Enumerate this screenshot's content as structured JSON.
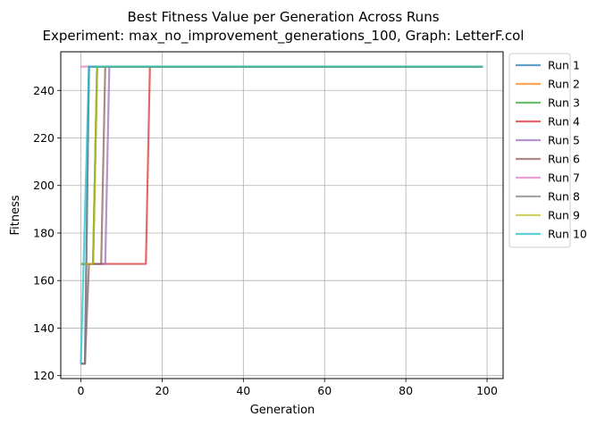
{
  "chart_data": {
    "type": "line",
    "title": "Best Fitness Value per Generation Across Runs",
    "subtitle": "Experiment: max_no_improvement_generations_100, Graph: LetterF.col",
    "xlabel": "Generation",
    "ylabel": "Fitness",
    "xlim": [
      -4.95,
      103.95
    ],
    "ylim": [
      118.75,
      256.25
    ],
    "xticks": [
      0,
      20,
      40,
      60,
      80,
      100
    ],
    "yticks": [
      120,
      140,
      160,
      180,
      200,
      220,
      240
    ],
    "grid": true,
    "legend_position": "outside-right",
    "series": [
      {
        "name": "Run 1",
        "color": "#1f77b4",
        "points": [
          [
            0,
            125
          ],
          [
            1,
            125
          ],
          [
            2,
            250
          ],
          [
            99,
            250
          ]
        ]
      },
      {
        "name": "Run 2",
        "color": "#ff7f0e",
        "points": [
          [
            0,
            167
          ],
          [
            3,
            167
          ],
          [
            4,
            250
          ],
          [
            99,
            250
          ]
        ]
      },
      {
        "name": "Run 3",
        "color": "#2ca02c",
        "points": [
          [
            0,
            167
          ],
          [
            3,
            167
          ],
          [
            4,
            250
          ],
          [
            99,
            250
          ]
        ]
      },
      {
        "name": "Run 4",
        "color": "#d62728",
        "points": [
          [
            0,
            167
          ],
          [
            16,
            167
          ],
          [
            17,
            250
          ],
          [
            99,
            250
          ]
        ]
      },
      {
        "name": "Run 5",
        "color": "#9467bd",
        "points": [
          [
            0,
            167
          ],
          [
            6,
            167
          ],
          [
            7,
            250
          ],
          [
            99,
            250
          ]
        ]
      },
      {
        "name": "Run 6",
        "color": "#8c564b",
        "points": [
          [
            0,
            125
          ],
          [
            1,
            125
          ],
          [
            2,
            167
          ],
          [
            5,
            167
          ],
          [
            6,
            250
          ],
          [
            99,
            250
          ]
        ]
      },
      {
        "name": "Run 7",
        "color": "#e377c2",
        "points": [
          [
            0,
            250
          ],
          [
            99,
            250
          ]
        ]
      },
      {
        "name": "Run 8",
        "color": "#7f7f7f",
        "points": [
          [
            0,
            125
          ],
          [
            1,
            125
          ],
          [
            2,
            250
          ],
          [
            99,
            250
          ]
        ]
      },
      {
        "name": "Run 9",
        "color": "#bcbd22",
        "points": [
          [
            0,
            167
          ],
          [
            3,
            167
          ],
          [
            4,
            250
          ],
          [
            99,
            250
          ]
        ]
      },
      {
        "name": "Run 10",
        "color": "#17becf",
        "points": [
          [
            0,
            125
          ],
          [
            2,
            250
          ],
          [
            99,
            250
          ]
        ]
      }
    ]
  }
}
